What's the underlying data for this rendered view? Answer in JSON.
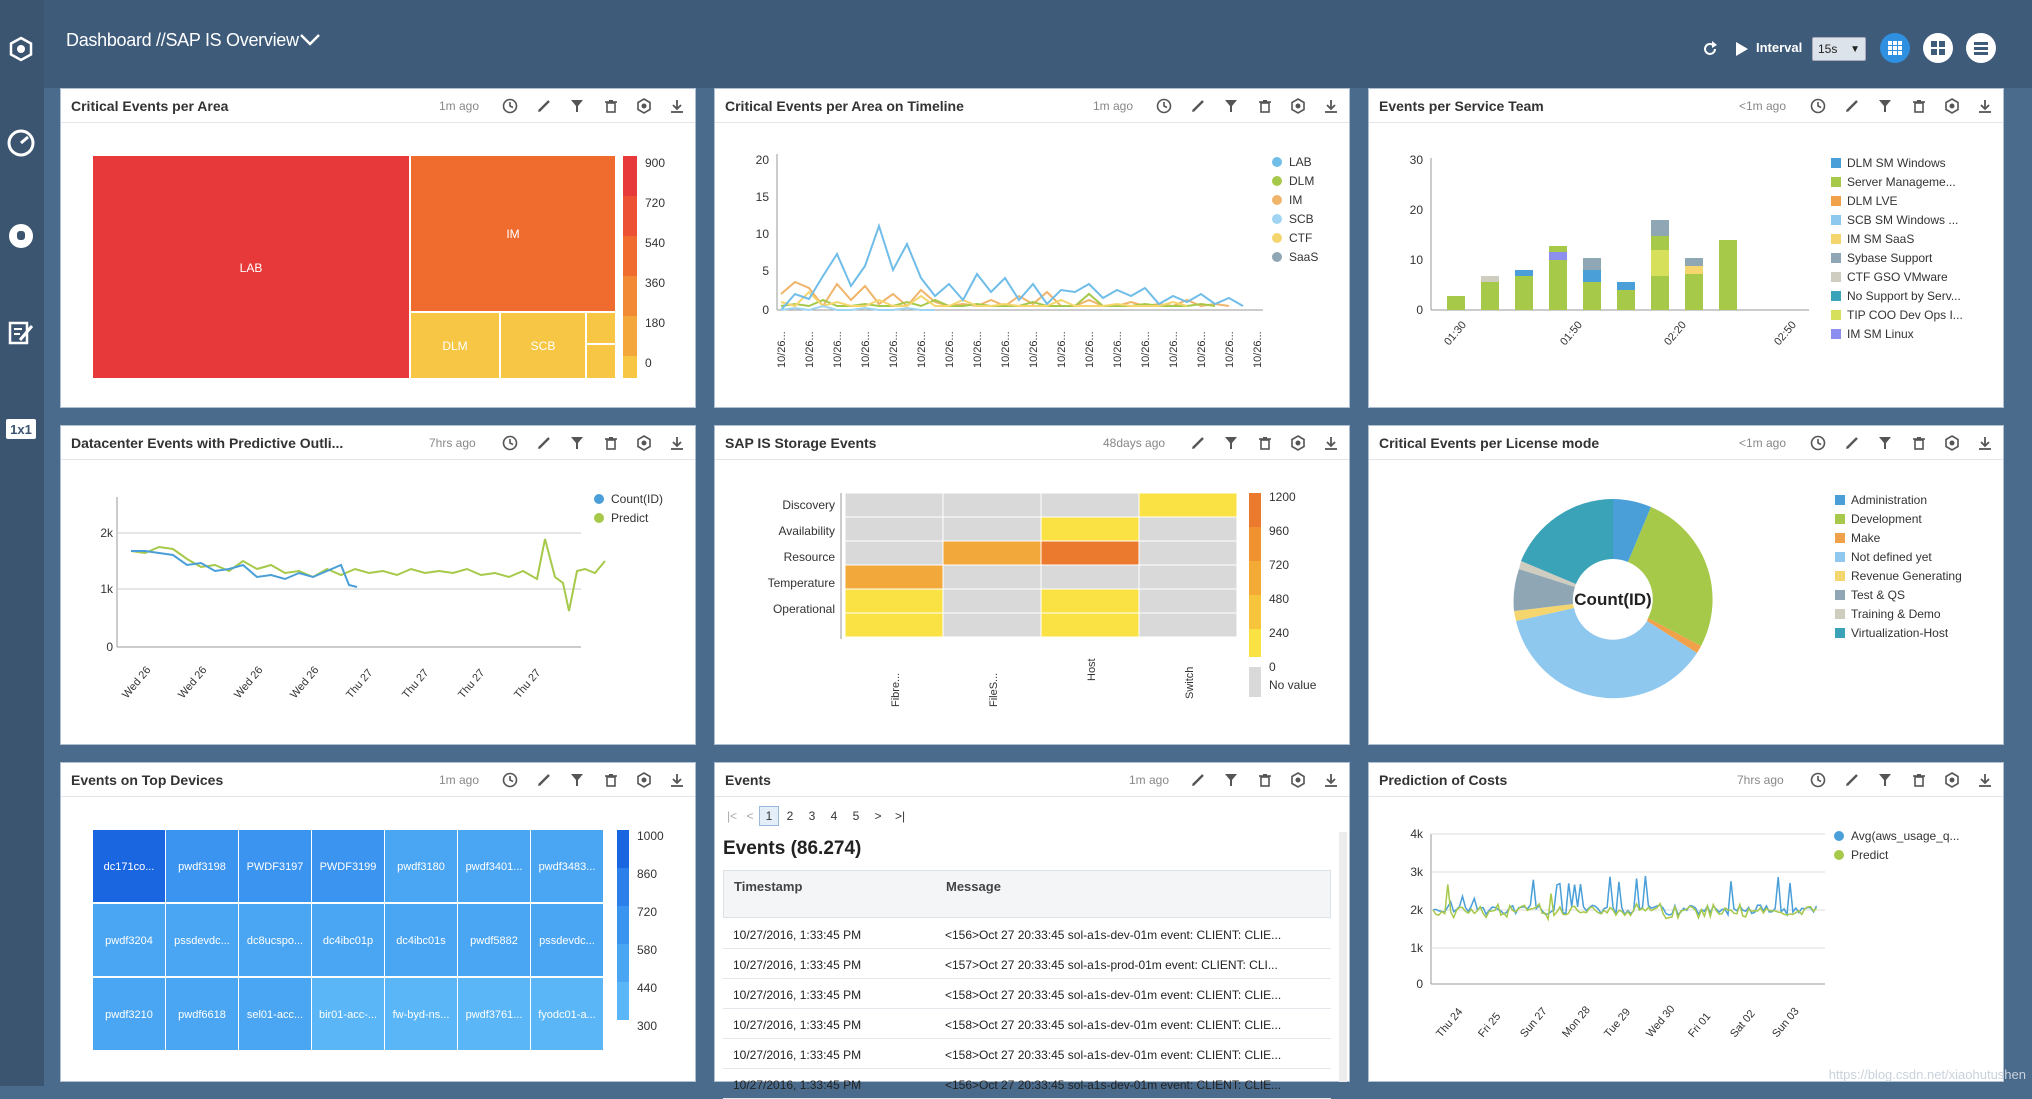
{
  "header": {
    "title": "Dashboard //SAP IS Overview",
    "interval_label": "Interval",
    "interval_value": "15s"
  },
  "sidebar": {
    "items": [
      {
        "icon": "cube-network-icon"
      },
      {
        "icon": "speedometer-icon"
      },
      {
        "icon": "alert-bell-icon"
      },
      {
        "icon": "edit-sheet-icon"
      },
      {
        "icon": "one-by-one-icon",
        "label": "1x1"
      }
    ]
  },
  "colors": {
    "header_bg": "#3e5b7a",
    "page_bg": "#4a6b8c",
    "red": "#e8393a",
    "orange": "#ef6c2e",
    "yellow": "#f6c644",
    "blue": "#3a8ee8"
  },
  "panels": [
    {
      "title": "Critical Events per Area",
      "age": "1m ago"
    },
    {
      "title": "Critical Events per Area on Timeline",
      "age": "1m ago"
    },
    {
      "title": "Events per Service Team",
      "age": "<1m ago"
    },
    {
      "title": "Datacenter Events with Predictive Outli...",
      "age": "7hrs ago"
    },
    {
      "title": "SAP IS Storage Events",
      "age": "48days ago"
    },
    {
      "title": "Critical Events per License mode",
      "age": "<1m ago"
    },
    {
      "title": "Events on Top Devices",
      "age": "1m ago"
    },
    {
      "title": "Events",
      "age": "1m ago"
    },
    {
      "title": "Prediction of Costs",
      "age": "7hrs ago"
    }
  ],
  "treemap": {
    "cells": [
      {
        "label": "LAB",
        "color": "#e8393a"
      },
      {
        "label": "IM",
        "color": "#ef6c2e"
      },
      {
        "label": "DLM",
        "color": "#f6c644"
      },
      {
        "label": "SCB",
        "color": "#f6c644"
      }
    ],
    "scale": [
      "900",
      "720",
      "540",
      "360",
      "180",
      "0"
    ]
  },
  "timeline": {
    "y_ticks": [
      "20",
      "15",
      "10",
      "5",
      "0"
    ],
    "x_tick": "10/26...",
    "legend": [
      {
        "name": "LAB",
        "color": "#6fbde8"
      },
      {
        "name": "DLM",
        "color": "#a6c94a"
      },
      {
        "name": "IM",
        "color": "#f0b46a"
      },
      {
        "name": "SCB",
        "color": "#9fd4f2"
      },
      {
        "name": "CTF",
        "color": "#f5d66e"
      },
      {
        "name": "SaaS",
        "color": "#8fa6b4"
      }
    ]
  },
  "service_team": {
    "y_ticks": [
      "30",
      "20",
      "10",
      "0"
    ],
    "x_ticks": [
      "01:30",
      "01:50",
      "02:20",
      "02:50"
    ],
    "legend": [
      {
        "name": "DLM SM Windows",
        "color": "#4a9fd8"
      },
      {
        "name": "Server Manageme...",
        "color": "#a6c94a"
      },
      {
        "name": "DLM LVE",
        "color": "#f0a14a"
      },
      {
        "name": "SCB SM Windows ...",
        "color": "#8ec8ef"
      },
      {
        "name": "IM SM SaaS",
        "color": "#f5d66e"
      },
      {
        "name": "Sybase Support",
        "color": "#8fa6b4"
      },
      {
        "name": "CTF GSO VMware",
        "color": "#cfccc0"
      },
      {
        "name": "No Support by Serv...",
        "color": "#3aa3b8"
      },
      {
        "name": "TIP COO Dev Ops I...",
        "color": "#d6e05a"
      },
      {
        "name": "IM SM Linux",
        "color": "#8c8ff0"
      }
    ]
  },
  "datacenter": {
    "y_ticks": [
      "2k",
      "1k",
      "0"
    ],
    "x_ticks": [
      "Wed 26",
      "Wed 26",
      "Wed 26",
      "Wed 26",
      "Thu 27",
      "Thu 27",
      "Thu 27",
      "Thu 27"
    ],
    "legend": [
      {
        "name": "Count(ID)",
        "color": "#4a9fd8"
      },
      {
        "name": "Predict",
        "color": "#a6c94a"
      }
    ]
  },
  "storage": {
    "rows": [
      "Discovery",
      "Availability",
      "Resource",
      "Temperature",
      "Operational"
    ],
    "cols": [
      "Fibre...",
      "FileS...",
      "Host",
      "Switch"
    ],
    "scale": [
      "1200",
      "960",
      "720",
      "480",
      "240",
      "0"
    ],
    "no_value": "No value"
  },
  "license": {
    "center_label": "Count(ID)",
    "legend": [
      {
        "name": "Administration",
        "color": "#4a9fd8"
      },
      {
        "name": "Development",
        "color": "#a6c94a"
      },
      {
        "name": "Make",
        "color": "#f0a14a"
      },
      {
        "name": "Not defined yet",
        "color": "#8ec8ef"
      },
      {
        "name": "Revenue Generating",
        "color": "#f5d66e"
      },
      {
        "name": "Test & QS",
        "color": "#8fa6b4"
      },
      {
        "name": "Training & Demo",
        "color": "#cfccc0"
      },
      {
        "name": "Virtualization-Host",
        "color": "#3aa3b8"
      }
    ]
  },
  "devices": {
    "rows": [
      [
        "dc171co...",
        "pwdf3198",
        "PWDF3197",
        "PWDF3199",
        "pwdf3180",
        "pwdf3401...",
        "pwdf3483..."
      ],
      [
        "pwdf3204",
        "pssdevdc...",
        "dc8ucspo...",
        "dc4ibc01p",
        "dc4ibc01s",
        "pwdf5882",
        "pssdevdc..."
      ],
      [
        "pwdf3210",
        "pwdf6618",
        "sel01-acc...",
        "bir01-acc-...",
        "fw-byd-ns...",
        "pwdf3761...",
        "fyodc01-a..."
      ]
    ],
    "scale": [
      "1000",
      "860",
      "720",
      "580",
      "440",
      "300"
    ]
  },
  "events": {
    "pager": [
      "|<",
      "<",
      "1",
      "2",
      "3",
      "4",
      "5",
      ">",
      ">|"
    ],
    "heading": "Events (86.274)",
    "columns": [
      "Timestamp",
      "Message"
    ],
    "rows": [
      [
        "10/27/2016, 1:33:45 PM",
        "<156>Oct 27 20:33:45 sol-a1s-dev-01m event: CLIENT: CLIE..."
      ],
      [
        "10/27/2016, 1:33:45 PM",
        "<157>Oct 27 20:33:45 sol-a1s-prod-01m event: CLIENT: CLI..."
      ],
      [
        "10/27/2016, 1:33:45 PM",
        "<158>Oct 27 20:33:45 sol-a1s-dev-01m event: CLIENT: CLIE..."
      ],
      [
        "10/27/2016, 1:33:45 PM",
        "<158>Oct 27 20:33:45 sol-a1s-dev-01m event: CLIENT: CLIE..."
      ],
      [
        "10/27/2016, 1:33:45 PM",
        "<158>Oct 27 20:33:45 sol-a1s-dev-01m event: CLIENT: CLIE..."
      ],
      [
        "10/27/2016, 1:33:45 PM",
        "<156>Oct 27 20:33:45 sol-a1s-dev-01m event: CLIENT: CLIE..."
      ]
    ]
  },
  "costs": {
    "y_ticks": [
      "4k",
      "3k",
      "2k",
      "1k",
      "0"
    ],
    "x_ticks": [
      "Thu 24",
      "Fri 25",
      "Sun 27",
      "Mon 28",
      "Tue 29",
      "Wed 30",
      "Fri 01",
      "Sat 02",
      "Sun 03"
    ],
    "legend": [
      {
        "name": "Avg(aws_usage_q...",
        "color": "#4a9fd8"
      },
      {
        "name": "Predict",
        "color": "#a6c94a"
      }
    ]
  },
  "watermark": "https://blog.csdn.net/xiaohutushen"
}
